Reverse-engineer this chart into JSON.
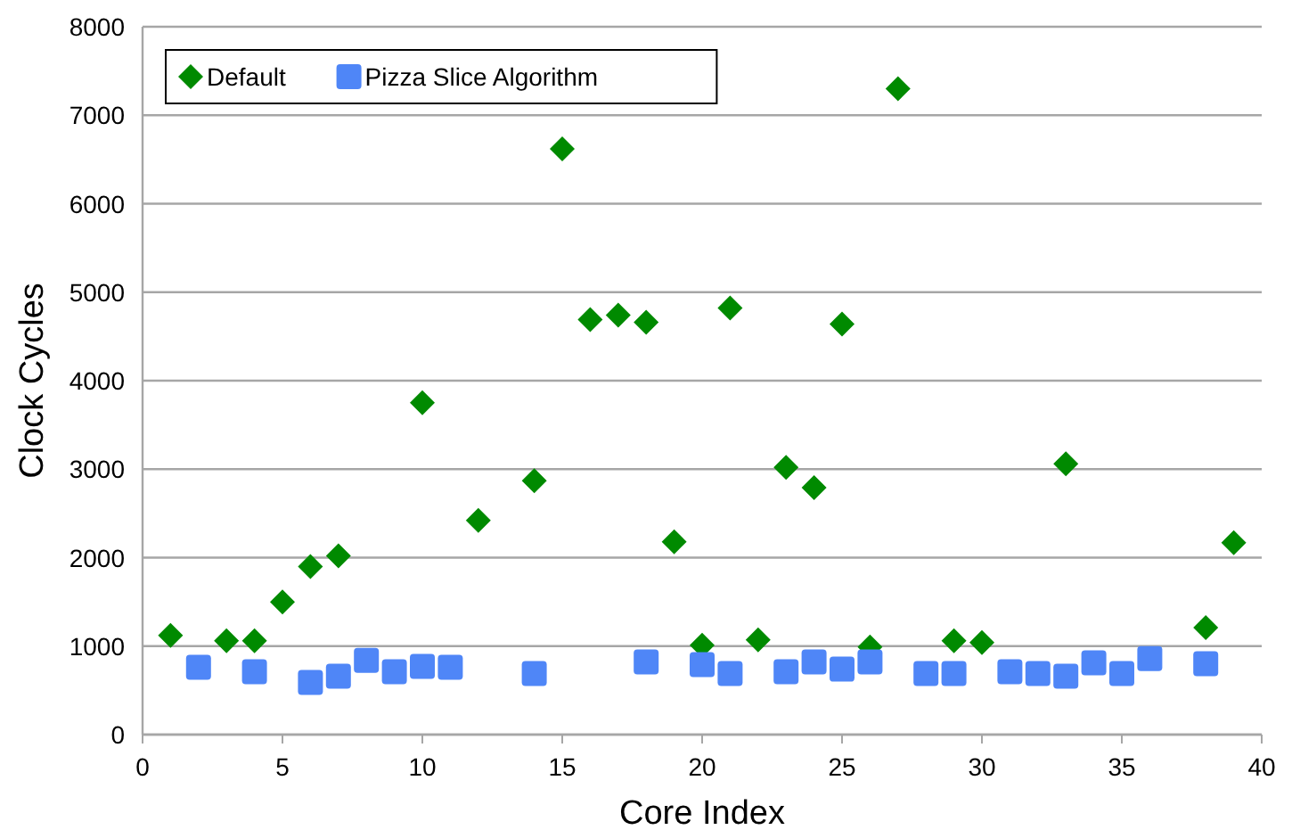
{
  "chart_data": {
    "type": "scatter",
    "xlabel": "Core Index",
    "ylabel": "Clock Cycles",
    "xlim": [
      0,
      40
    ],
    "xticks": [
      0,
      5,
      10,
      15,
      20,
      25,
      30,
      35,
      40
    ],
    "ylim": [
      0,
      8000
    ],
    "yticks": [
      0,
      1000,
      2000,
      3000,
      4000,
      5000,
      6000,
      7000,
      8000
    ],
    "grid": "y",
    "legend": "top left",
    "series": [
      {
        "name": "Default",
        "color": "#008a00",
        "marker": "diamond",
        "x": [
          1,
          3,
          4,
          5,
          6,
          7,
          10,
          12,
          14,
          15,
          16,
          17,
          18,
          19,
          20,
          21,
          22,
          23,
          24,
          25,
          26,
          27,
          29,
          30,
          33,
          38,
          39
        ],
        "values": [
          1120,
          1060,
          1060,
          1500,
          1900,
          2020,
          3750,
          2420,
          2870,
          6620,
          4690,
          4740,
          4660,
          2180,
          1010,
          4820,
          1070,
          3020,
          2790,
          4640,
          990,
          7300,
          1060,
          1040,
          3060,
          1210,
          2170
        ]
      },
      {
        "name": "Pizza Slice Algorithm",
        "color": "#4f86f7",
        "marker": "square",
        "x": [
          2,
          4,
          6,
          7,
          8,
          9,
          10,
          11,
          14,
          18,
          20,
          21,
          23,
          24,
          25,
          26,
          28,
          29,
          31,
          32,
          33,
          34,
          35,
          36,
          38
        ],
        "values": [
          760,
          710,
          590,
          660,
          840,
          710,
          770,
          760,
          690,
          820,
          790,
          690,
          710,
          820,
          740,
          820,
          690,
          690,
          710,
          690,
          660,
          810,
          690,
          860,
          800
        ]
      }
    ]
  }
}
